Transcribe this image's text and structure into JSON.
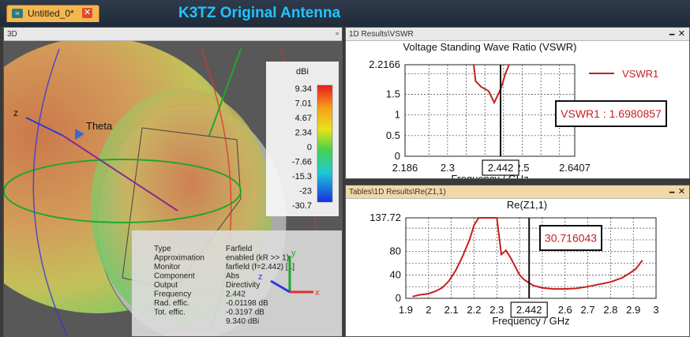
{
  "tab": {
    "label": "Untitled_0*",
    "close": "✕"
  },
  "banner": "K3TZ Original Antenna",
  "panel3d": {
    "title": "3D",
    "axis_z": "z",
    "theta": "Theta",
    "colorbar": {
      "unit": "dBi",
      "ticks": [
        "9.34",
        "7.01",
        "4.67",
        "2.34",
        "0",
        "-7.66",
        "-15.3",
        "-23",
        "-30.7"
      ]
    },
    "info": [
      {
        "label": "Type",
        "value": "Farfield"
      },
      {
        "label": "Approximation",
        "value": "enabled (kR >> 1)"
      },
      {
        "label": "Monitor",
        "value": "farfield (f=2.442) [1]"
      },
      {
        "label": "Component",
        "value": "Abs"
      },
      {
        "label": "Output",
        "value": "Directivity"
      },
      {
        "label": "Frequency",
        "value": "2.442"
      },
      {
        "label": "Rad. effic.",
        "value": "-0.01198 dB"
      },
      {
        "label": "Tot. effic.",
        "value": "-0.3197 dB"
      },
      {
        "label": "",
        "value": "9.340 dBi"
      }
    ],
    "triad": {
      "x": "x",
      "y": "y",
      "z": "z"
    }
  },
  "vswr_panel": {
    "title": "1D Results\\VSWR",
    "min": "🗕",
    "close": "✕",
    "marker_box": "VSWR1 : 1.6980857",
    "cursor_label": "2.442"
  },
  "z11_panel": {
    "title": "Tables\\1D Results\\Re(Z1,1)",
    "min": "🗕",
    "close": "✕",
    "marker_box": "30.716043",
    "cursor_label": "2.442"
  },
  "chart_data": [
    {
      "type": "line",
      "title": "Voltage Standing Wave Ratio (VSWR)",
      "xlabel": "Frequency / GHz",
      "ylabel": "",
      "xlim": [
        2.186,
        2.6407
      ],
      "ylim": [
        0,
        2.2166
      ],
      "xticks": [
        "2.186",
        "2.3",
        "2.442",
        "2.5",
        "2.6407"
      ],
      "yticks": [
        "2.2166",
        "1.5",
        "1",
        "0.5",
        "0"
      ],
      "grid": true,
      "legend": "top-right",
      "series": [
        {
          "name": "VSWR1",
          "color": "#c81e1e",
          "x": [
            2.37,
            2.375,
            2.39,
            2.41,
            2.425,
            2.44,
            2.445,
            2.455,
            2.465
          ],
          "y": [
            2.2166,
            1.82,
            1.68,
            1.58,
            1.3,
            1.58,
            1.7,
            2.0,
            2.2166
          ]
        }
      ],
      "cursor_x": 2.442,
      "marker_value": 1.6980857
    },
    {
      "type": "line",
      "title": "Re(Z1,1)",
      "xlabel": "Frequency / GHz",
      "ylabel": "",
      "xlim": [
        1.9,
        3.0
      ],
      "ylim": [
        0,
        137.72
      ],
      "xticks": [
        "1.9",
        "2",
        "2.1",
        "2.2",
        "2.3",
        "2.442",
        "2.6",
        "2.7",
        "2.8",
        "2.9",
        "3"
      ],
      "yticks": [
        "137.72",
        "80",
        "40",
        "0"
      ],
      "grid": true,
      "legend": "",
      "series": [
        {
          "name": "",
          "color": "#c81e1e",
          "x": [
            1.93,
            1.96,
            2.0,
            2.03,
            2.06,
            2.09,
            2.12,
            2.15,
            2.18,
            2.2,
            2.22,
            2.24,
            2.26,
            2.28,
            2.3,
            2.32,
            2.34,
            2.36,
            2.38,
            2.4,
            2.42,
            2.44,
            2.46,
            2.5,
            2.55,
            2.6,
            2.65,
            2.7,
            2.75,
            2.8,
            2.85,
            2.88,
            2.91,
            2.94
          ],
          "y": [
            3,
            6,
            8,
            12,
            18,
            30,
            48,
            72,
            100,
            125,
            137.72,
            137.72,
            137.72,
            137.72,
            137.72,
            75,
            82,
            70,
            55,
            40,
            32,
            27,
            22,
            18,
            16,
            16,
            17,
            20,
            24,
            28,
            35,
            42,
            50,
            65
          ]
        }
      ],
      "cursor_x": 2.442,
      "marker_value": 30.716043
    }
  ]
}
